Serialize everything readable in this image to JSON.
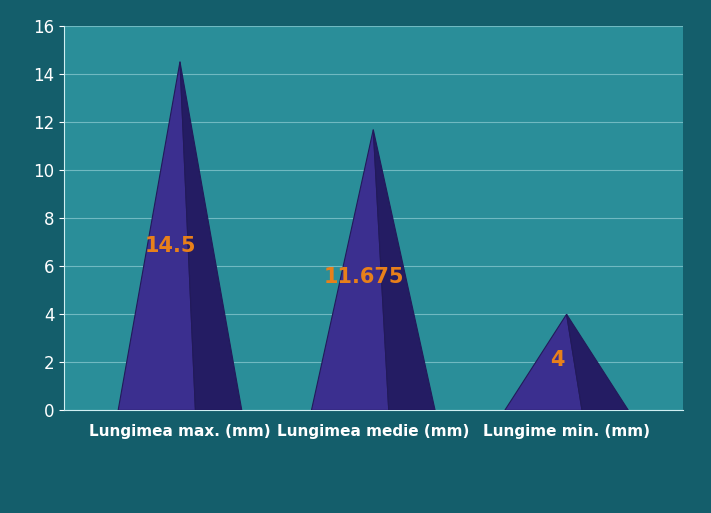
{
  "chart_data": {
    "type": "bar",
    "categories": [
      "Lungimea max. (mm)",
      "Lungimea medie (mm)",
      "Lungime min. (mm)"
    ],
    "values": [
      14.5,
      11.675,
      4
    ],
    "color": "#3b2f8f",
    "ylim": [
      0,
      16
    ],
    "yticks": [
      0,
      2,
      4,
      6,
      8,
      10,
      12,
      14,
      16
    ],
    "grid": true,
    "data_labels": true
  }
}
